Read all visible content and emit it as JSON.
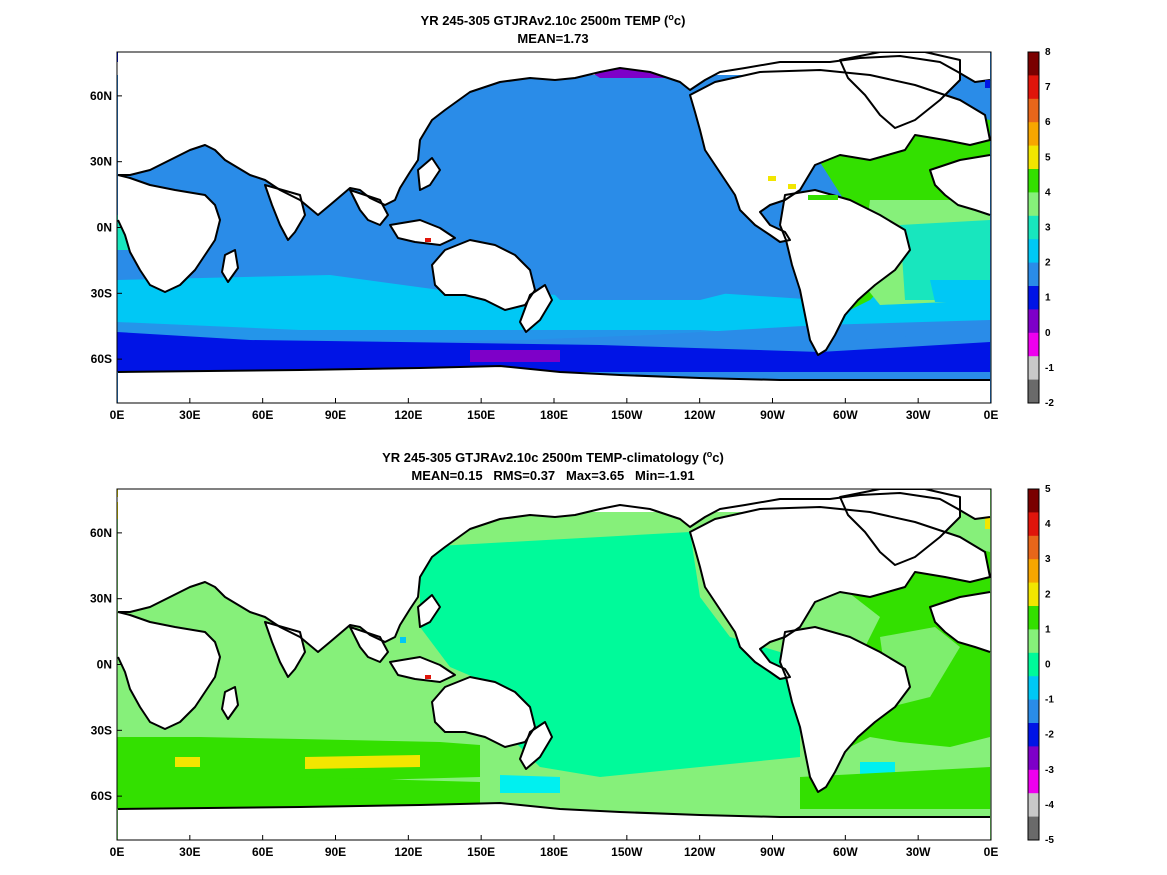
{
  "chart_data": [
    {
      "type": "heatmap",
      "title": "YR 245-305 GTJRAv2.10c 2500m TEMP (°c)",
      "title_text": "YR 245-305 GTJRAv2.10c 2500m TEMP (",
      "title_unit": "o",
      "title_end": "c)",
      "subtitle": "MEAN=1.73",
      "x_ticks": [
        "0E",
        "30E",
        "60E",
        "90E",
        "120E",
        "150E",
        "180E",
        "150W",
        "120W",
        "90W",
        "60W",
        "30W",
        "0E"
      ],
      "y_ticks": [
        "60N",
        "30N",
        "0N",
        "30S",
        "60S"
      ],
      "colorbar_ticks": [
        "8",
        "7",
        "6",
        "5",
        "4",
        "3",
        "2",
        "1",
        "0",
        "-1",
        "-2"
      ],
      "colorbar_colors": [
        "#7a0000",
        "#e0150b",
        "#e8661a",
        "#f7a600",
        "#f2e600",
        "#33e000",
        "#86f07a",
        "#18e6be",
        "#00c8f5",
        "#2a8ce8",
        "#0014e6",
        "#7e00c8",
        "#ee00ee",
        "#c8c8c8",
        "#6a6a6a"
      ],
      "mean": 1.73
    },
    {
      "type": "heatmap",
      "title": "YR 245-305 GTJRAv2.10c 2500m TEMP-climatology (°c)",
      "title_text": "YR 245-305 GTJRAv2.10c 2500m TEMP-climatology (",
      "title_unit": "o",
      "title_end": "c)",
      "subtitle": "MEAN=0.15   RMS=0.37   Max=3.65   Min=-1.91",
      "x_ticks": [
        "0E",
        "30E",
        "60E",
        "90E",
        "120E",
        "150E",
        "180E",
        "150W",
        "120W",
        "90W",
        "60W",
        "30W",
        "0E"
      ],
      "y_ticks": [
        "60N",
        "30N",
        "0N",
        "30S",
        "60S"
      ],
      "colorbar_ticks": [
        "5",
        "4",
        "3",
        "2",
        "1",
        "0",
        "-1",
        "-2",
        "-3",
        "-4",
        "-5"
      ],
      "colorbar_colors": [
        "#7a0000",
        "#e0150b",
        "#e8661a",
        "#f7a600",
        "#f2e600",
        "#33e000",
        "#86f07a",
        "#00fa9a",
        "#00c8f5",
        "#2a8ce8",
        "#0014e6",
        "#7e00c8",
        "#ee00ee",
        "#c8c8c8",
        "#6a6a6a"
      ],
      "mean": 0.15,
      "rms": 0.37,
      "max": 3.65,
      "min": -1.91
    }
  ],
  "palette": {
    "land": "#ffffff",
    "coast": "#000000",
    "top_deep_blue": "#0014e6",
    "top_blue": "#2a8ce8",
    "top_cyan": "#00c8f5",
    "top_teal": "#18e6be",
    "top_lightgreen": "#86f07a",
    "top_green": "#33e000",
    "top_purple": "#7e00c8",
    "top_yellow": "#f2e600",
    "bot_springgreen": "#00fa9a",
    "bot_lightgreen": "#86f07a",
    "bot_green": "#33e000",
    "bot_yellow": "#f2e600",
    "bot_cyan": "#00f0f0",
    "bot_red": "#e0150b"
  }
}
